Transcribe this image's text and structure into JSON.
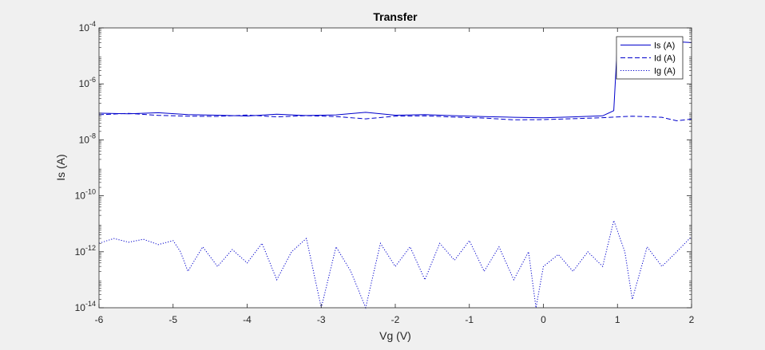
{
  "chart_data": {
    "type": "line",
    "title": "Transfer",
    "xlabel": "Vg (V)",
    "ylabel": "Is (A)",
    "xlim": [
      -6,
      2
    ],
    "ylim": [
      1e-14,
      0.0001
    ],
    "yscale": "log",
    "xticks": [
      "-6",
      "-5",
      "-4",
      "-3",
      "-2",
      "-1",
      "0",
      "1",
      "2"
    ],
    "xtick_values": [
      -6,
      -5,
      -4,
      -3,
      -2,
      -1,
      0,
      1,
      2
    ],
    "yticks": [
      {
        "base": "10",
        "exp": "-14",
        "value": 1e-14
      },
      {
        "base": "10",
        "exp": "-12",
        "value": 1e-12
      },
      {
        "base": "10",
        "exp": "-10",
        "value": 1e-10
      },
      {
        "base": "10",
        "exp": "-8",
        "value": 1e-08
      },
      {
        "base": "10",
        "exp": "-6",
        "value": 1e-06
      },
      {
        "base": "10",
        "exp": "-4",
        "value": 0.0001
      }
    ],
    "grid": false,
    "legend_position": "top-right",
    "colors": {
      "line": "#0000cc",
      "axes": "#262626",
      "plot_bg": "#ffffff",
      "figure_bg": "#f0f0f0"
    },
    "series": [
      {
        "name": "Is (A)",
        "style": "solid",
        "points": [
          [
            -6.0,
            9e-08
          ],
          [
            -5.6,
            8.5e-08
          ],
          [
            -5.2,
            9.3e-08
          ],
          [
            -4.8,
            8e-08
          ],
          [
            -4.4,
            7.6e-08
          ],
          [
            -4.0,
            7.1e-08
          ],
          [
            -3.6,
            8.2e-08
          ],
          [
            -3.2,
            7.4e-08
          ],
          [
            -2.8,
            7.8e-08
          ],
          [
            -2.4,
            9.6e-08
          ],
          [
            -2.0,
            7.6e-08
          ],
          [
            -1.6,
            8e-08
          ],
          [
            -1.2,
            7.3e-08
          ],
          [
            -0.8,
            6.8e-08
          ],
          [
            -0.4,
            6.4e-08
          ],
          [
            0.0,
            6.1e-08
          ],
          [
            0.4,
            6.6e-08
          ],
          [
            0.8,
            7.2e-08
          ],
          [
            0.95,
            1.1e-07
          ],
          [
            1.0,
            3.3e-05
          ],
          [
            1.4,
            3.3e-05
          ],
          [
            1.8,
            3.2e-05
          ],
          [
            2.0,
            3e-05
          ]
        ]
      },
      {
        "name": "Id (A)",
        "style": "dashed",
        "points": [
          [
            -6.0,
            7.9e-08
          ],
          [
            -5.6,
            8.8e-08
          ],
          [
            -5.2,
            7.5e-08
          ],
          [
            -4.8,
            7e-08
          ],
          [
            -4.4,
            6.9e-08
          ],
          [
            -4.0,
            7.7e-08
          ],
          [
            -3.6,
            6.6e-08
          ],
          [
            -3.2,
            7.3e-08
          ],
          [
            -2.8,
            6.8e-08
          ],
          [
            -2.4,
            5.6e-08
          ],
          [
            -2.0,
            7e-08
          ],
          [
            -1.6,
            7.2e-08
          ],
          [
            -1.2,
            6.5e-08
          ],
          [
            -0.8,
            6e-08
          ],
          [
            -0.4,
            5.2e-08
          ],
          [
            0.0,
            5.3e-08
          ],
          [
            0.4,
            5.7e-08
          ],
          [
            0.8,
            6.2e-08
          ],
          [
            1.2,
            7e-08
          ],
          [
            1.6,
            6.4e-08
          ],
          [
            1.8,
            4.8e-08
          ],
          [
            2.0,
            5.5e-08
          ]
        ]
      },
      {
        "name": "Ig (A)",
        "style": "dotted",
        "points": [
          [
            -6.0,
            2e-12
          ],
          [
            -5.8,
            3e-12
          ],
          [
            -5.6,
            2.2e-12
          ],
          [
            -5.4,
            2.8e-12
          ],
          [
            -5.2,
            1.8e-12
          ],
          [
            -5.0,
            2.5e-12
          ],
          [
            -4.9,
            1e-12
          ],
          [
            -4.8,
            2e-13
          ],
          [
            -4.6,
            1.5e-12
          ],
          [
            -4.4,
            3e-13
          ],
          [
            -4.2,
            1.2e-12
          ],
          [
            -4.0,
            4e-13
          ],
          [
            -3.8,
            2e-12
          ],
          [
            -3.6,
            1e-13
          ],
          [
            -3.4,
            1e-12
          ],
          [
            -3.2,
            3e-12
          ],
          [
            -3.0,
            1e-14
          ],
          [
            -2.8,
            1.5e-12
          ],
          [
            -2.6,
            2e-13
          ],
          [
            -2.4,
            1e-14
          ],
          [
            -2.2,
            2e-12
          ],
          [
            -2.0,
            3e-13
          ],
          [
            -1.8,
            1.5e-12
          ],
          [
            -1.6,
            1e-13
          ],
          [
            -1.4,
            2e-12
          ],
          [
            -1.2,
            5e-13
          ],
          [
            -1.0,
            2.5e-12
          ],
          [
            -0.8,
            2e-13
          ],
          [
            -0.6,
            1.5e-12
          ],
          [
            -0.4,
            1e-13
          ],
          [
            -0.2,
            1e-12
          ],
          [
            -0.1,
            1e-14
          ],
          [
            0.0,
            3e-13
          ],
          [
            0.2,
            8e-13
          ],
          [
            0.4,
            2e-13
          ],
          [
            0.6,
            1e-12
          ],
          [
            0.8,
            3e-13
          ],
          [
            0.95,
            1.3e-11
          ],
          [
            1.1,
            1e-12
          ],
          [
            1.2,
            2e-14
          ],
          [
            1.4,
            1.5e-12
          ],
          [
            1.6,
            3e-13
          ],
          [
            1.8,
            1e-12
          ],
          [
            2.0,
            3.5e-12
          ]
        ]
      }
    ]
  }
}
